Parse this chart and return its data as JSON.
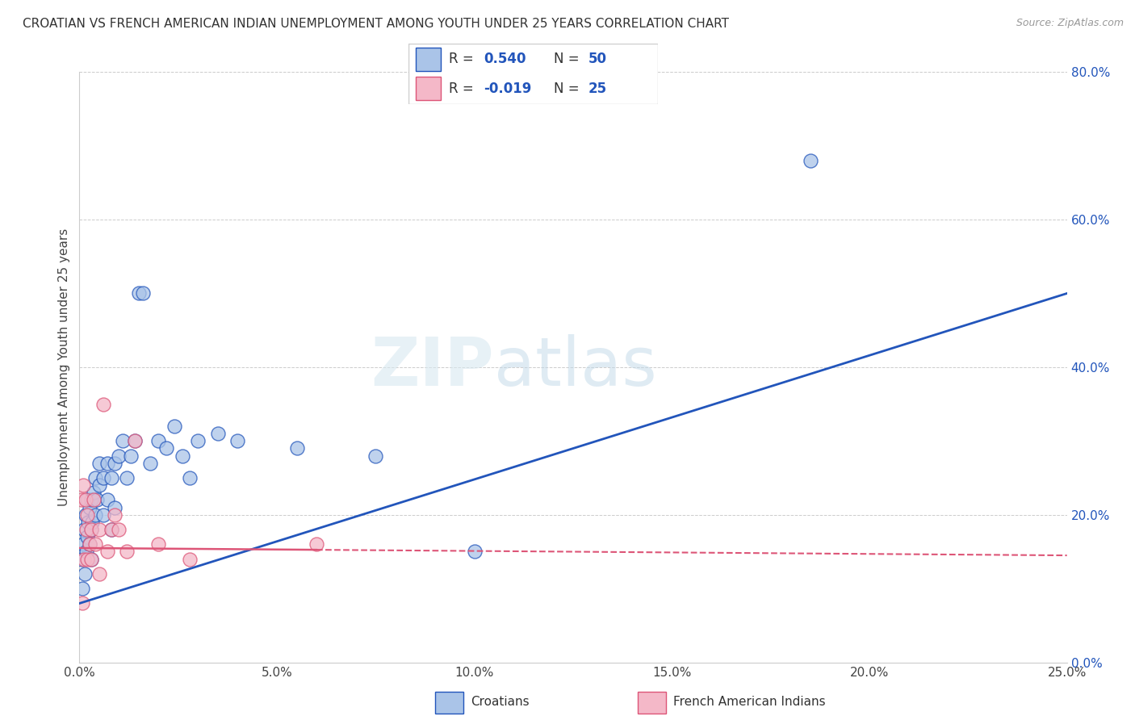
{
  "title": "CROATIAN VS FRENCH AMERICAN INDIAN UNEMPLOYMENT AMONG YOUTH UNDER 25 YEARS CORRELATION CHART",
  "source": "Source: ZipAtlas.com",
  "ylabel": "Unemployment Among Youth under 25 years",
  "xlim": [
    0.0,
    0.25
  ],
  "ylim": [
    0.0,
    0.8
  ],
  "xticks": [
    0.0,
    0.05,
    0.1,
    0.15,
    0.2,
    0.25
  ],
  "yticks": [
    0.0,
    0.2,
    0.4,
    0.6,
    0.8
  ],
  "xtick_labels": [
    "0.0%",
    "5.0%",
    "10.0%",
    "15.0%",
    "20.0%",
    "25.0%"
  ],
  "ytick_labels": [
    "0.0%",
    "20.0%",
    "40.0%",
    "60.0%",
    "80.0%"
  ],
  "blue_color": "#aac4e8",
  "pink_color": "#f4b8c8",
  "blue_line_color": "#2255bb",
  "pink_line_color": "#dd5577",
  "watermark_zip": "ZIP",
  "watermark_atlas": "atlas",
  "croatian_x": [
    0.0005,
    0.0008,
    0.001,
    0.0012,
    0.0013,
    0.0015,
    0.0018,
    0.002,
    0.002,
    0.0022,
    0.0025,
    0.0025,
    0.003,
    0.003,
    0.003,
    0.0032,
    0.0035,
    0.004,
    0.004,
    0.0045,
    0.005,
    0.005,
    0.006,
    0.006,
    0.007,
    0.007,
    0.008,
    0.008,
    0.009,
    0.009,
    0.01,
    0.011,
    0.012,
    0.013,
    0.014,
    0.015,
    0.016,
    0.018,
    0.02,
    0.022,
    0.024,
    0.026,
    0.028,
    0.03,
    0.035,
    0.04,
    0.055,
    0.075,
    0.1,
    0.185
  ],
  "croatian_y": [
    0.14,
    0.1,
    0.16,
    0.18,
    0.12,
    0.2,
    0.15,
    0.17,
    0.22,
    0.19,
    0.16,
    0.21,
    0.14,
    0.18,
    0.22,
    0.19,
    0.23,
    0.2,
    0.25,
    0.22,
    0.24,
    0.27,
    0.25,
    0.2,
    0.27,
    0.22,
    0.25,
    0.18,
    0.27,
    0.21,
    0.28,
    0.3,
    0.25,
    0.28,
    0.3,
    0.5,
    0.5,
    0.27,
    0.3,
    0.29,
    0.32,
    0.28,
    0.25,
    0.3,
    0.31,
    0.3,
    0.29,
    0.28,
    0.15,
    0.68
  ],
  "french_x": [
    0.0005,
    0.0008,
    0.001,
    0.0012,
    0.0015,
    0.0018,
    0.002,
    0.002,
    0.0025,
    0.003,
    0.003,
    0.0035,
    0.004,
    0.005,
    0.005,
    0.006,
    0.007,
    0.008,
    0.009,
    0.01,
    0.012,
    0.014,
    0.02,
    0.028,
    0.06
  ],
  "french_y": [
    0.22,
    0.08,
    0.24,
    0.14,
    0.22,
    0.18,
    0.14,
    0.2,
    0.16,
    0.18,
    0.14,
    0.22,
    0.16,
    0.18,
    0.12,
    0.35,
    0.15,
    0.18,
    0.2,
    0.18,
    0.15,
    0.3,
    0.16,
    0.14,
    0.16
  ],
  "cro_trend_x0": 0.0,
  "cro_trend_y0": 0.08,
  "cro_trend_x1": 0.25,
  "cro_trend_y1": 0.5,
  "fre_trend_x0": 0.0,
  "fre_trend_y0": 0.155,
  "fre_trend_x1": 0.25,
  "fre_trend_y1": 0.145
}
